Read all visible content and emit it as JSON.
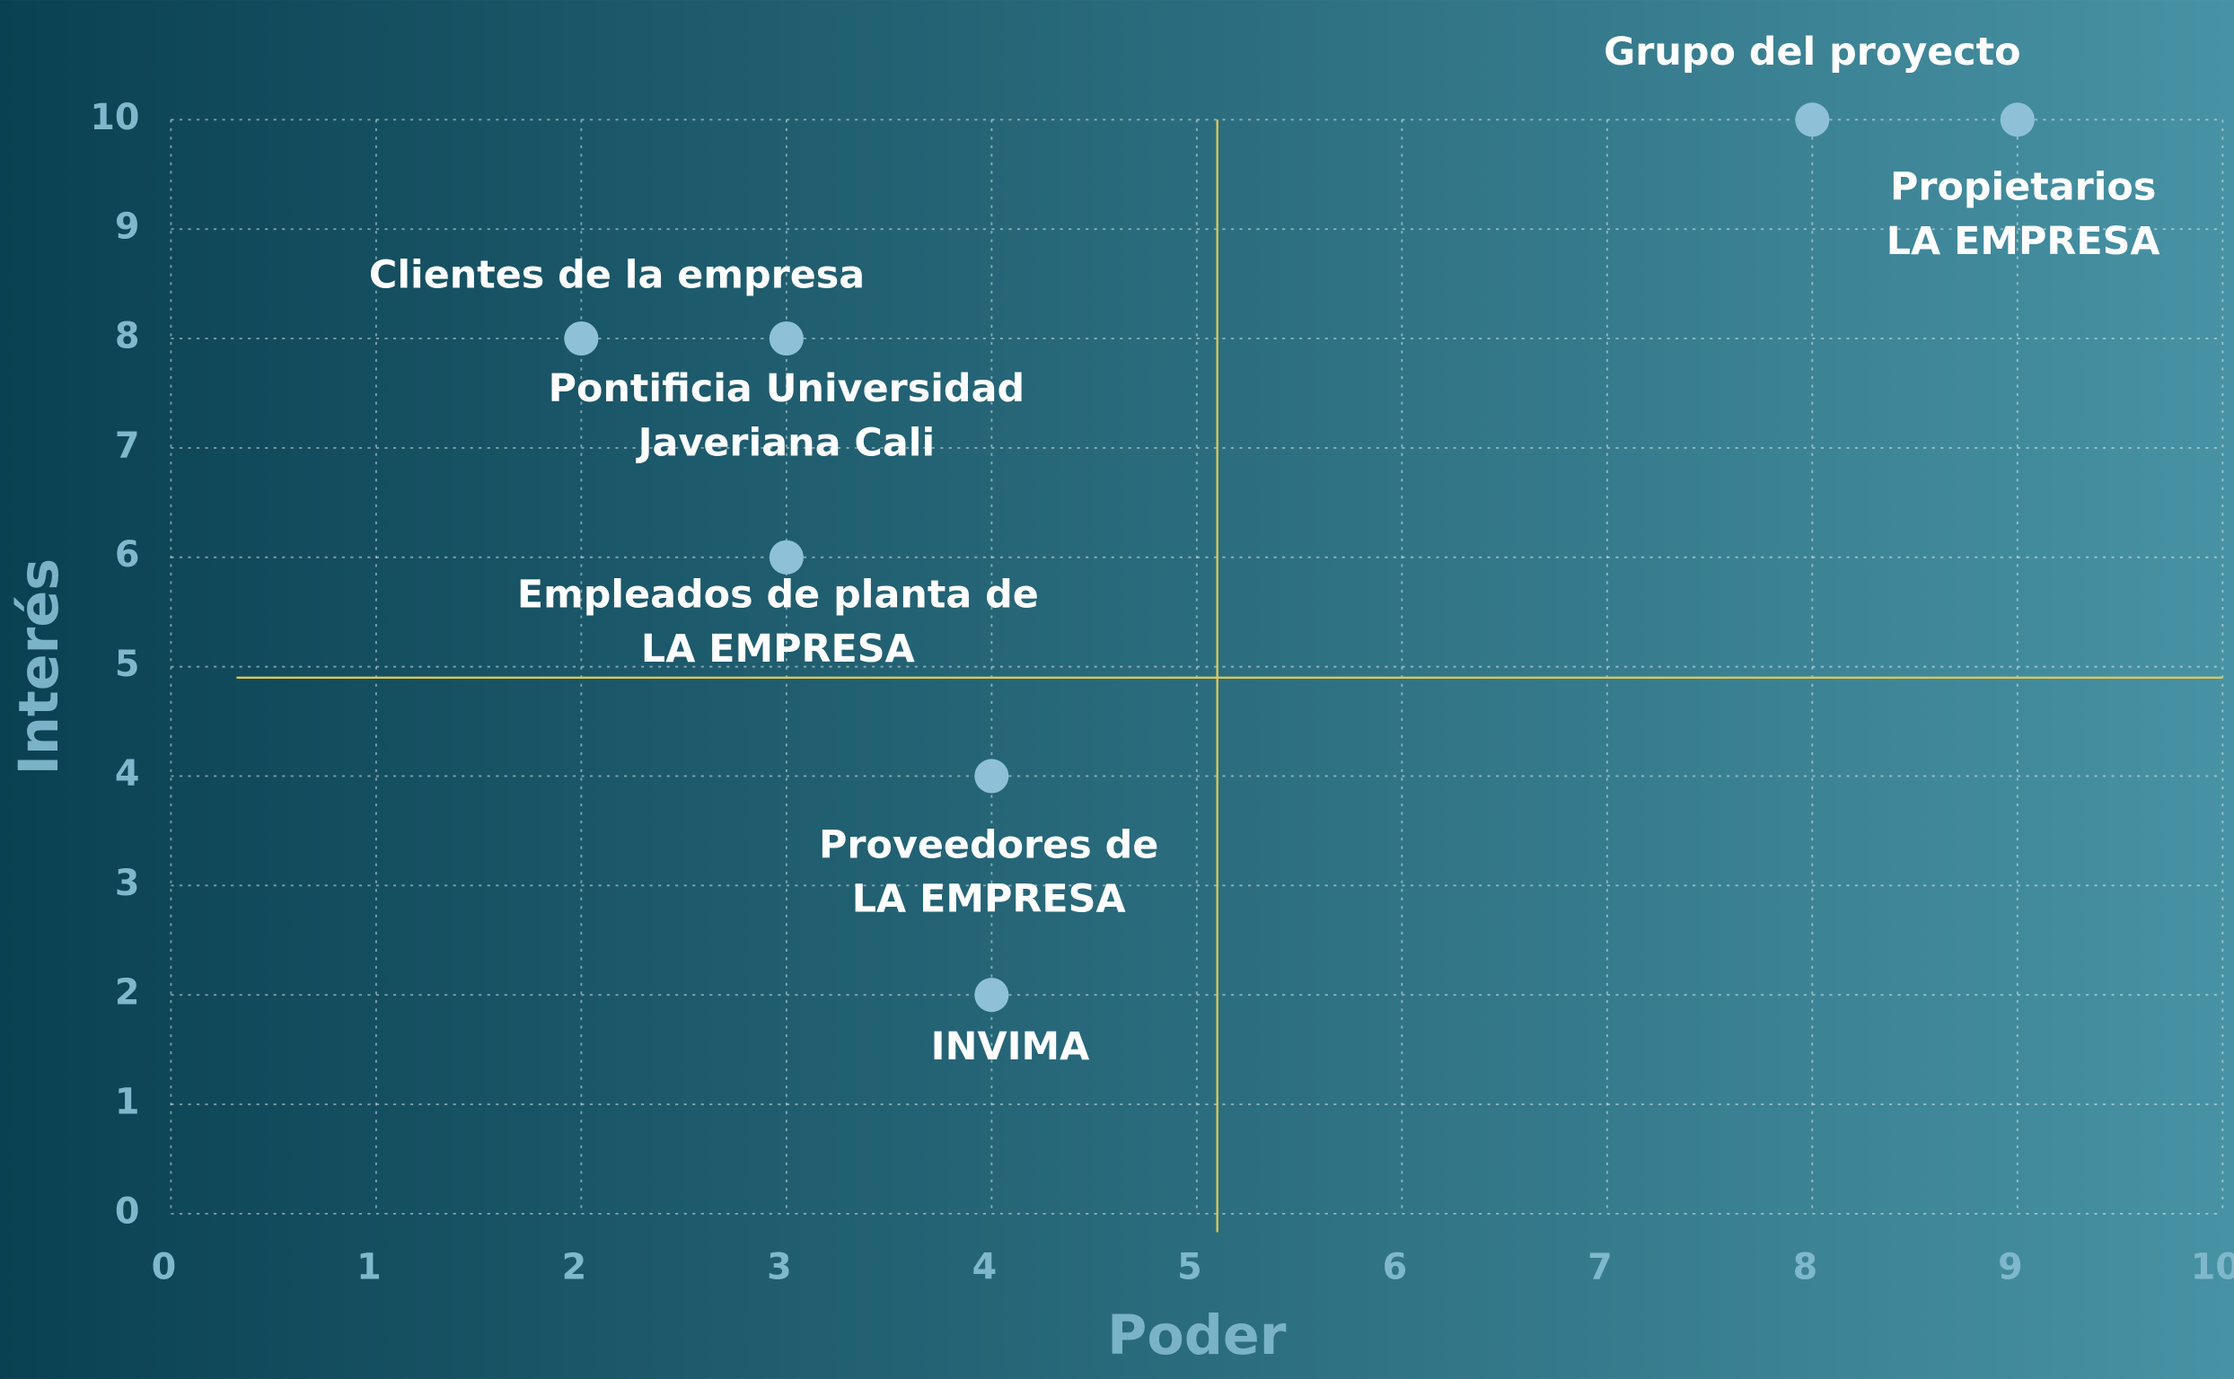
{
  "chart_data": {
    "type": "scatter",
    "x_label": "Poder",
    "y_label": "Interés",
    "x": [
      8,
      9,
      2,
      3,
      3,
      4,
      4
    ],
    "values": [
      10,
      10,
      8,
      8,
      6,
      4,
      2
    ],
    "point_labels": [
      [
        "Grupo del proyecto"
      ],
      [
        "Propietarios",
        "LA EMPRESA"
      ],
      [
        "Clientes de la empresa"
      ],
      [
        "Pontificia Universidad",
        "Javeriana Cali"
      ],
      [
        "Empleados de planta de",
        "LA EMPRESA"
      ],
      [
        "Proveedores de",
        "LA EMPRESA"
      ],
      [
        "INVIMA"
      ]
    ],
    "color": "#8ec1d8",
    "xlim": [
      0,
      10
    ],
    "xticks": [
      0,
      1,
      2,
      3,
      4,
      5,
      6,
      7,
      8,
      9,
      10
    ],
    "ylim": [
      0,
      10
    ],
    "yticks": [
      0,
      1,
      2,
      3,
      4,
      5,
      6,
      7,
      8,
      9,
      10
    ],
    "grid": true,
    "reference_lines": {
      "x": 5.1,
      "y": 4.9,
      "color": "#d9c65a"
    }
  }
}
